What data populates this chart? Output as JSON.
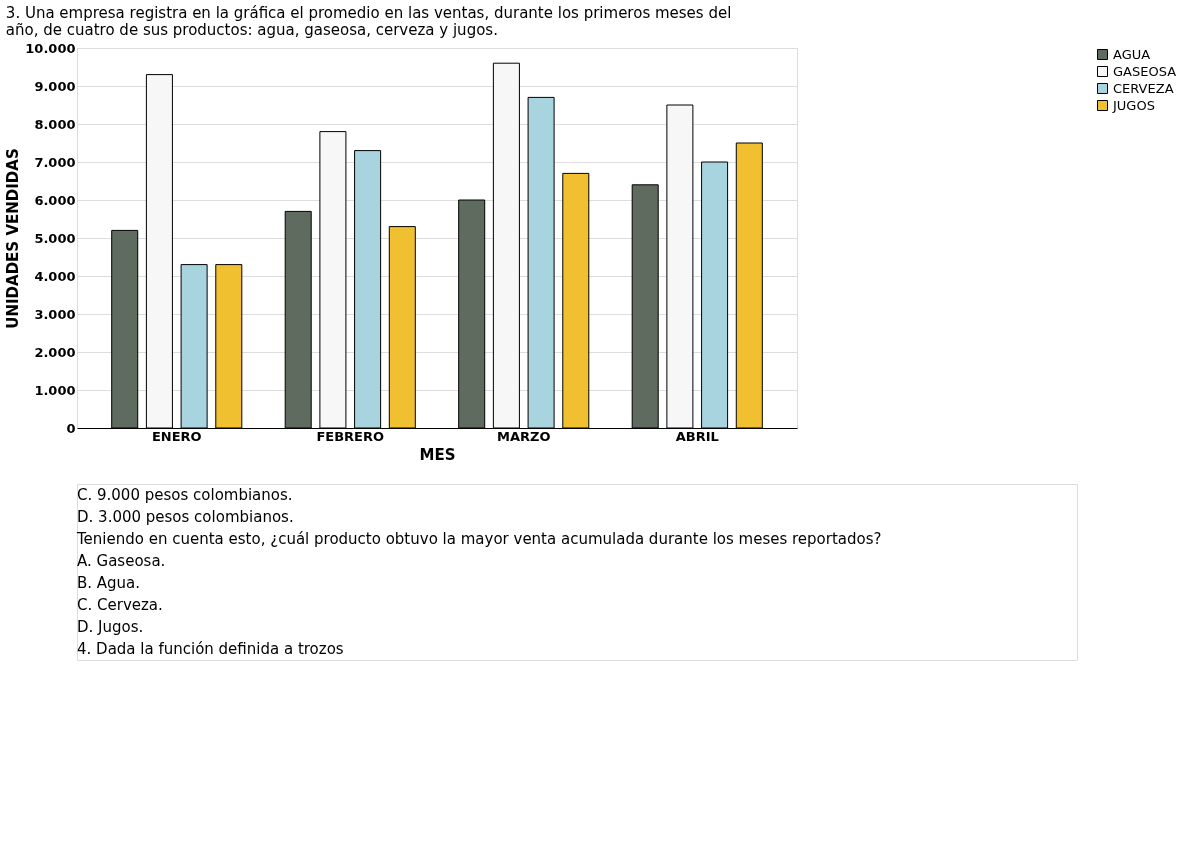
{
  "chart_data": {
    "type": "bar",
    "title": [
      "3. Una empresa registra en la gráfica el promedio en las ventas, durante los primeros meses del",
      "año, de cuatro de sus productos: agua, gaseosa, cerveza y jugos."
    ],
    "xlabel": "MES",
    "ylabel": "UNIDADES VENDIDAS",
    "categories": [
      "ENERO",
      "FEBRERO",
      "MARZO",
      "ABRIL"
    ],
    "series": [
      {
        "name": "AGUA",
        "color": "#5f6b5f",
        "values": [
          5200,
          5700,
          6000,
          6400
        ]
      },
      {
        "name": "GASEOSA",
        "color": "#f7f7f7",
        "values": [
          9300,
          7800,
          9600,
          8500
        ]
      },
      {
        "name": "CERVEZA",
        "color": "#a8d4e0",
        "values": [
          4300,
          7300,
          8700,
          7000
        ]
      },
      {
        "name": "JUGOS",
        "color": "#f0c030",
        "values": [
          4300,
          5300,
          6700,
          7500
        ]
      }
    ],
    "ylim": [
      0,
      10000
    ],
    "yticks": [
      {
        "value": 0,
        "label": "0"
      },
      {
        "value": 1000,
        "label": "1.000"
      },
      {
        "value": 2000,
        "label": "2.000"
      },
      {
        "value": 3000,
        "label": "3.000"
      },
      {
        "value": 4000,
        "label": "4.000"
      },
      {
        "value": 5000,
        "label": "5.000"
      },
      {
        "value": 6000,
        "label": "6.000"
      },
      {
        "value": 7000,
        "label": "7.000"
      },
      {
        "value": 8000,
        "label": "8.000"
      },
      {
        "value": 9000,
        "label": "9.000"
      },
      {
        "value": 10000,
        "label": "10.000"
      }
    ],
    "grid": "y",
    "legend": "right",
    "annotations": [
      "C. 9.000 pesos colombianos.",
      "D. 3.000 pesos colombianos.",
      "Teniendo en cuenta esto, ¿cuál producto obtuvo la mayor venta acumulada durante los meses reportados?",
      "A. Gaseosa.",
      "B. Agua.",
      "C. Cerveza.",
      "D. Jugos.",
      "4. Dada la función definida a trozos"
    ]
  }
}
